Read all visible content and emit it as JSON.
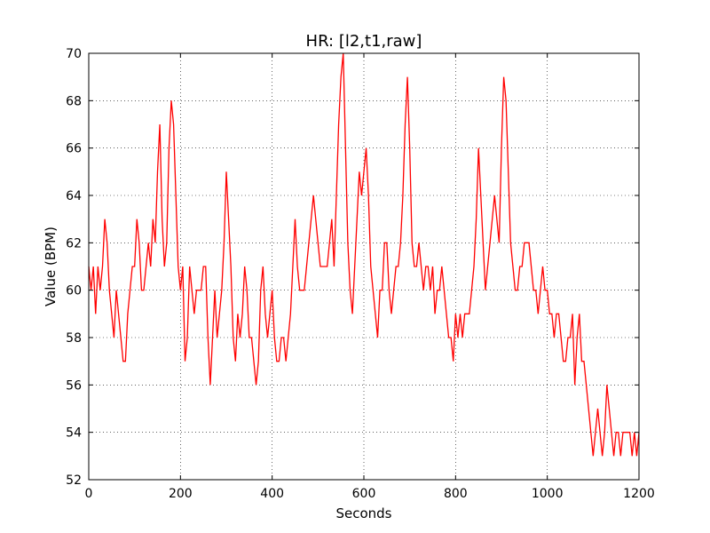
{
  "chart_data": {
    "type": "line",
    "title": "HR: [l2,t1,raw]",
    "xlabel": "Seconds",
    "ylabel": "Value (BPM)",
    "xlim": [
      0,
      1200
    ],
    "ylim": [
      52,
      70
    ],
    "xticks": [
      0,
      200,
      400,
      600,
      800,
      1000,
      1200
    ],
    "yticks": [
      52,
      54,
      56,
      58,
      60,
      62,
      64,
      66,
      68,
      70
    ],
    "grid": true,
    "series": [
      {
        "color": "#ff0000",
        "x": [
          0,
          5,
          10,
          15,
          20,
          25,
          30,
          35,
          40,
          45,
          50,
          55,
          60,
          65,
          70,
          75,
          80,
          85,
          90,
          95,
          100,
          105,
          110,
          115,
          120,
          125,
          130,
          135,
          140,
          145,
          150,
          155,
          160,
          165,
          170,
          175,
          180,
          185,
          190,
          195,
          200,
          205,
          210,
          215,
          220,
          225,
          230,
          235,
          240,
          245,
          250,
          255,
          260,
          265,
          270,
          275,
          280,
          285,
          290,
          295,
          300,
          305,
          310,
          315,
          320,
          325,
          330,
          335,
          340,
          345,
          350,
          355,
          360,
          365,
          370,
          375,
          380,
          385,
          390,
          395,
          400,
          405,
          410,
          415,
          420,
          425,
          430,
          435,
          440,
          445,
          450,
          455,
          460,
          465,
          470,
          475,
          480,
          485,
          490,
          495,
          500,
          505,
          510,
          515,
          520,
          525,
          530,
          535,
          540,
          545,
          550,
          555,
          560,
          565,
          570,
          575,
          580,
          585,
          590,
          595,
          600,
          605,
          610,
          615,
          620,
          625,
          630,
          635,
          640,
          645,
          650,
          655,
          660,
          665,
          670,
          675,
          680,
          685,
          690,
          695,
          700,
          705,
          710,
          715,
          720,
          725,
          730,
          735,
          740,
          745,
          750,
          755,
          760,
          765,
          770,
          775,
          780,
          785,
          790,
          795,
          800,
          805,
          810,
          815,
          820,
          825,
          830,
          835,
          840,
          845,
          850,
          855,
          860,
          865,
          870,
          875,
          880,
          885,
          890,
          895,
          900,
          905,
          910,
          915,
          920,
          925,
          930,
          935,
          940,
          945,
          950,
          955,
          960,
          965,
          970,
          975,
          980,
          985,
          990,
          995,
          1000,
          1005,
          1010,
          1015,
          1020,
          1025,
          1030,
          1035,
          1040,
          1045,
          1050,
          1055,
          1060,
          1065,
          1070,
          1075,
          1080,
          1085,
          1090,
          1095,
          1100,
          1105,
          1110,
          1115,
          1120,
          1125,
          1130,
          1135,
          1140,
          1145,
          1150,
          1155,
          1160,
          1165,
          1170,
          1175,
          1180,
          1185,
          1190,
          1195,
          1200
        ],
        "y": [
          61,
          60,
          61,
          59,
          61,
          60,
          61,
          63,
          62,
          60,
          59,
          58,
          60,
          59,
          58,
          57,
          57,
          59,
          60,
          61,
          61,
          63,
          62,
          60,
          60,
          61,
          62,
          61,
          63,
          62,
          65,
          67,
          63,
          61,
          62,
          66,
          68,
          67,
          64,
          61,
          60,
          61,
          57,
          58,
          61,
          60,
          59,
          60,
          60,
          60,
          61,
          61,
          58,
          56,
          58,
          60,
          58,
          59,
          60,
          62,
          65,
          63,
          61,
          58,
          57,
          59,
          58,
          59,
          61,
          60,
          58,
          58,
          57,
          56,
          57,
          60,
          61,
          59,
          58,
          59,
          60,
          58,
          57,
          57,
          58,
          58,
          57,
          58,
          59,
          61,
          63,
          61,
          60,
          60,
          60,
          61,
          62,
          63,
          64,
          63,
          62,
          61,
          61,
          61,
          61,
          62,
          63,
          61,
          64,
          67,
          69,
          70,
          66,
          62,
          60,
          59,
          61,
          63,
          65,
          64,
          65,
          66,
          64,
          61,
          60,
          59,
          58,
          60,
          60,
          62,
          62,
          60,
          59,
          60,
          61,
          61,
          62,
          64,
          67,
          69,
          66,
          62,
          61,
          61,
          62,
          61,
          60,
          61,
          61,
          60,
          61,
          59,
          60,
          60,
          61,
          60,
          59,
          58,
          58,
          57,
          59,
          58,
          59,
          58,
          59,
          59,
          59,
          60,
          61,
          63,
          66,
          64,
          62,
          60,
          61,
          62,
          63,
          64,
          63,
          62,
          66,
          69,
          68,
          65,
          62,
          61,
          60,
          60,
          61,
          61,
          62,
          62,
          62,
          61,
          60,
          60,
          59,
          60,
          61,
          60,
          60,
          59,
          59,
          58,
          59,
          59,
          58,
          57,
          57,
          58,
          58,
          59,
          56,
          58,
          59,
          57,
          57,
          56,
          55,
          54,
          53,
          54,
          55,
          54,
          53,
          54,
          56,
          55,
          54,
          53,
          54,
          54,
          53,
          54,
          54,
          54,
          54,
          53,
          54,
          53,
          54
        ]
      }
    ]
  }
}
